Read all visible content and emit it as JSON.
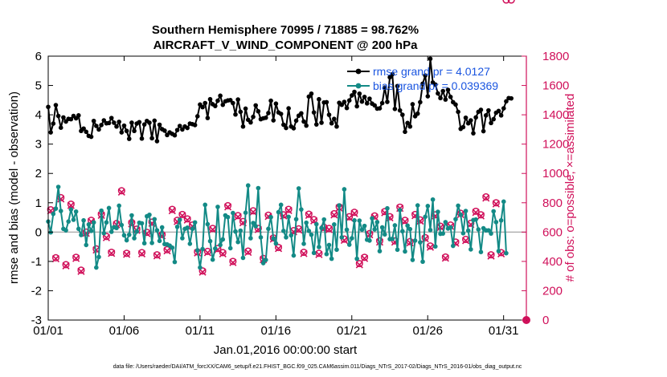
{
  "chart_data": {
    "type": "line",
    "title": "Southern Hemisphere 70995 / 71885 = 98.762%",
    "subtitle": "AIRCRAFT_V_WIND_COMPONENT @ 200 hPa",
    "xlabel": "Jan.01,2016 00:00:00 start",
    "ylabel_left": "rmse and bias (model - observation)",
    "ylabel_right": "# of obs: o=possible; ×=assimilated",
    "xlim": [
      1,
      32.5
    ],
    "ylim_left": [
      -3,
      6
    ],
    "ylim_right": [
      0,
      1800
    ],
    "x_ticks": [
      1,
      6,
      11,
      16,
      21,
      26,
      31
    ],
    "x_tick_labels": [
      "01/01",
      "01/06",
      "01/11",
      "01/16",
      "01/21",
      "01/26",
      "01/31"
    ],
    "y_left_ticks": [
      -3,
      -2,
      -1,
      0,
      1,
      2,
      3,
      4,
      5,
      6
    ],
    "y_left_tick_labels": [
      "-3",
      "-2",
      "-1",
      "0",
      "1",
      "2",
      "3",
      "4",
      "5",
      "6"
    ],
    "y_right_ticks": [
      0,
      200,
      400,
      600,
      800,
      1000,
      1200,
      1400,
      1600,
      1800
    ],
    "y_right_tick_labels": [
      "0",
      "200",
      "400",
      "600",
      "800",
      "1000",
      "1200",
      "1400",
      "1600",
      "1800"
    ],
    "legend": [
      {
        "label": "rmse grand pr = 4.0127",
        "color": "#000000"
      },
      {
        "label": "bias grand pr = 0.039369",
        "color": "#138a86"
      }
    ],
    "colors": {
      "rmse": "#000000",
      "bias": "#138a86",
      "obs": "#d0105a",
      "zero_line": "#b0b0b0"
    },
    "series": [
      {
        "name": "rmse",
        "axis": "left",
        "values": [
          4.27,
          3.4,
          3.7,
          4.33,
          3.96,
          3.56,
          3.91,
          3.77,
          3.86,
          3.85,
          3.96,
          3.88,
          3.98,
          3.45,
          3.53,
          3.42,
          3.28,
          3.25,
          3.79,
          3.62,
          3.5,
          3.65,
          3.81,
          3.71,
          3.72,
          3.89,
          3.73,
          3.6,
          3.76,
          3.4,
          3.63,
          3.45,
          3.18,
          3.73,
          3.45,
          3.7,
          3.75,
          3.19,
          3.67,
          3.79,
          3.73,
          3.2,
          3.8,
          3.1,
          3.66,
          3.51,
          3.46,
          3.31,
          3.4,
          3.35,
          3.3,
          3.48,
          3.62,
          3.5,
          3.6,
          3.55,
          3.7,
          3.68,
          3.65,
          3.95,
          4.35,
          4.26,
          4.4,
          3.89,
          4.53,
          4.36,
          4.3,
          4.48,
          4.65,
          4.34,
          4.46,
          4.49,
          4.5,
          4.4,
          4.01,
          4.52,
          4.1,
          3.6,
          4.21,
          3.83,
          3.74,
          3.93,
          4.32,
          4.12,
          3.85,
          3.88,
          3.9,
          4.06,
          4.48,
          3.81,
          4.38,
          4.08,
          4.03,
          3.66,
          3.55,
          4.22,
          3.6,
          3.54,
          3.8,
          3.97,
          4.05,
          3.77,
          3.63,
          4.62,
          4.72,
          4.08,
          3.67,
          4.53,
          3.73,
          4.42,
          4.43,
          4.0,
          3.71,
          3.86,
          3.6,
          4.41,
          4.34,
          4.44,
          4.23,
          4.49,
          4.66,
          4.78,
          4.29,
          4.72,
          4.45,
          4.61,
          4.39,
          4.55,
          4.38,
          4.32,
          4.21,
          4.22,
          4.4,
          4.93,
          4.44,
          5.28,
          5.38,
          4.2,
          4.98,
          4.15,
          4.0,
          3.42,
          3.72,
          3.6,
          4.36,
          3.95,
          4.04,
          4.43,
          5.06,
          5.34,
          4.63,
          5.91,
          5.1,
          5.03,
          4.73,
          4.57,
          4.81,
          4.52,
          4.85,
          4.61,
          4.43,
          4.35,
          4.1,
          3.52,
          3.58,
          3.9,
          3.71,
          3.81,
          3.37,
          3.91,
          4.1,
          4.17,
          3.44,
          3.98,
          4.15,
          3.72,
          3.85,
          4.07,
          4.13,
          3.98,
          4.22,
          4.46,
          4.57,
          4.56
        ]
      },
      {
        "name": "bias",
        "axis": "left",
        "values": [
          0.36,
          -0.01,
          0.62,
          0.8,
          1.54,
          0.72,
          0.11,
          0.06,
          0.36,
          0.77,
          0.42,
          0.7,
          0.11,
          -0.1,
          0.4,
          -0.44,
          0.26,
          0.04,
          0.33,
          -1.21,
          -0.85,
          0.73,
          -0.04,
          0.33,
          0.82,
          0.01,
          0.17,
          0.14,
          0.9,
          0.24,
          -0.11,
          -0.28,
          -0.09,
          0.57,
          -0.21,
          0.02,
          0.32,
          0.3,
          -0.38,
          0.54,
          0.59,
          -0.37,
          0.44,
          0.06,
          -0.3,
          0.16,
          -0.41,
          -0.42,
          -0.46,
          -0.53,
          -1.02,
          0.18,
          0.42,
          -0.21,
          0.11,
          0.15,
          -0.4,
          0.11,
          0.33,
          -0.62,
          -1.21,
          -0.58,
          0.93,
          0.27,
          -0.31,
          -0.94,
          -0.56,
          0.86,
          -0.44,
          -0.25,
          0.57,
          0.51,
          -0.55,
          0.65,
          0.02,
          -0.34,
          0.05,
          -0.88,
          0.66,
          1.59,
          -0.21,
          0.31,
          0.2,
          1.5,
          -0.18,
          -1.06,
          -0.95,
          0.11,
          0.51,
          -0.22,
          -0.39,
          0.68,
          0.93,
          0.04,
          -0.18,
          0.52,
          -0.11,
          -0.8,
          0.44,
          1.49,
          0.77,
          -0.4,
          0.32,
          0.04,
          -0.09,
          -0.71,
          0.27,
          -0.51,
          0.14,
          0.43,
          -0.75,
          -0.44,
          -0.91,
          0.26,
          -0.6,
          0.91,
          -0.18,
          1.46,
          0.08,
          -0.43,
          -0.21,
          0.4,
          -0.91,
          0.39,
          0.08,
          0.21,
          -0.26,
          -0.29,
          0.47,
          0.09,
          0.34,
          -0.65,
          0.16,
          -0.08,
          0.81,
          -0.24,
          -0.23,
          0.23,
          -0.6,
          0.75,
          0.03,
          -0.66,
          0.22,
          0.1,
          -0.95,
          -0.29,
          0.91,
          -0.35,
          -1.01,
          0.52,
          0.89,
          0.07,
          1.11,
          -0.49,
          0.69,
          -0.06,
          -0.05,
          0.34,
          0.12,
          0.16,
          -0.47,
          0.44,
          0.9,
          0.59,
          -0.04,
          0.72,
          0.05,
          -0.59,
          0.41,
          0.43,
          0.09,
          -0.68,
          0.13,
          0.06,
          0.06,
          -0.05,
          0.71,
          0.34,
          -0.65,
          0.4,
          1.04,
          -0.72
        ]
      },
      {
        "name": "obs_possible",
        "axis": "right",
        "values": [
          630,
          752,
          415,
          425,
          418,
          835,
          357,
          378,
          700,
          790,
          680,
          428,
          760,
          340,
          632,
          600,
          437,
          680,
          582,
          485,
          642,
          722,
          630,
          570,
          720,
          462,
          590,
          658,
          712,
          882,
          725,
          455,
          550,
          665,
          780,
          620,
          640,
          460,
          800,
          598,
          620,
          668,
          752,
          445,
          562,
          583,
          710,
          480,
          730,
          755,
          515,
          680,
          400,
          720,
          815,
          690,
          528,
          648,
          728,
          465,
          425,
          335,
          558,
          468,
          590,
          625,
          440,
          488,
          400,
          460,
          718,
          780,
          540,
          400,
          627,
          712,
          450,
          672,
          712,
          470,
          462,
          745,
          640,
          625,
          820,
          420,
          770,
          715,
          622,
          560,
          578,
          495,
          683,
          718,
          850,
          755,
          380,
          610,
          440,
          622,
          505,
          462,
          765,
          722,
          440,
          685,
          602,
          455,
          390,
          632,
          480,
          625,
          912,
          725,
          455,
          772,
          505,
          552,
          618,
          705,
          865,
          735,
          672,
          385,
          710,
          428,
          455,
          590,
          600,
          710,
          665,
          540,
          425,
          740,
          760,
          705,
          412,
          540,
          480,
          770,
          655,
          680,
          500,
          535,
          628,
          720,
          578,
          683,
          530,
          562,
          530,
          505,
          742,
          718,
          510,
          640,
          750,
          430,
          582,
          648,
          690,
          532,
          465,
          728,
          682,
          550,
          865,
          660,
          440,
          742,
          645,
          718,
          542,
          840,
          600,
          445,
          612,
          800,
          640,
          460,
          410
        ]
      },
      {
        "name": "obs_assimilated",
        "axis": "right",
        "values": [
          622,
          745,
          405,
          418,
          410,
          826,
          348,
          370,
          692,
          782,
          672,
          420,
          750,
          332,
          624,
          592,
          428,
          672,
          574,
          478,
          634,
          714,
          622,
          562,
          712,
          455,
          582,
          650,
          704,
          873,
          716,
          448,
          542,
          656,
          772,
          612,
          632,
          452,
          792,
          590,
          612,
          660,
          744,
          438,
          554,
          575,
          702,
          472,
          722,
          746,
          506,
          672,
          392,
          712,
          806,
          682,
          520,
          640,
          720,
          458,
          418,
          327,
          550,
          460,
          582,
          617,
          432,
          480,
          392,
          452,
          710,
          772,
          532,
          392,
          619,
          704,
          442,
          664,
          704,
          462,
          454,
          737,
          632,
          617,
          812,
          412,
          762,
          707,
          614,
          552,
          570,
          488,
          675,
          710,
          842,
          747,
          372,
          602,
          432,
          614,
          497,
          454,
          757,
          714,
          432,
          677,
          594,
          447,
          382,
          624,
          472,
          617,
          904,
          717,
          447,
          764,
          497,
          544,
          610,
          697,
          857,
          727,
          664,
          377,
          702,
          420,
          447,
          582,
          592,
          702,
          657,
          532,
          417,
          732,
          752,
          697,
          404,
          532,
          472,
          762,
          647,
          672,
          492,
          527,
          620,
          712,
          570,
          675,
          522,
          554,
          522,
          497,
          734,
          710,
          502,
          632,
          742,
          422,
          574,
          640,
          682,
          524,
          457,
          720,
          674,
          542,
          857,
          652,
          432,
          734,
          637,
          710,
          534,
          832,
          592,
          437,
          604,
          792,
          632,
          452,
          402
        ]
      }
    ]
  },
  "footer": {
    "data_file": "data file: /Users/raeder/DAI/ATM_forcXX/CAM6_setup/f.e21.FHIST_BGC.f09_025.CAM6assim.011/Diags_NTrS_2017-02/Diags_NTrS_2016-01/obs_diag_output.nc"
  }
}
